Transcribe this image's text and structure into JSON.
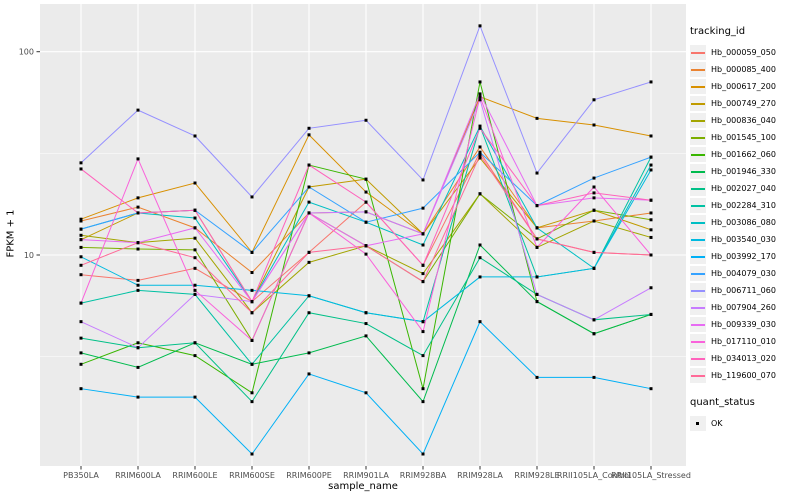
{
  "figure": {
    "background": "#FFFFFF",
    "panel_background": "#EBEBEB",
    "grid_major_color": "#FFFFFF",
    "grid_minor_color": "#FFFFFF",
    "axis_text_color": "#4D4D4D",
    "tick_color": "#333333",
    "point_color": "#000000"
  },
  "chart_data": {
    "type": "line",
    "title": "",
    "xlabel": "sample_name",
    "ylabel": "FPKM + 1",
    "y_scale": "log10",
    "ylim": [
      0.91,
      172
    ],
    "y_ticks": [
      10,
      100
    ],
    "y_minor_ticks": [
      3.162,
      31.62
    ],
    "grid": true,
    "legend_position": "right",
    "point_shape": "filled-black-square",
    "categories": [
      "PB350LA",
      "RRIM600LA",
      "RRIM600LE",
      "RRIM600SE",
      "RRIM600PE",
      "RRIM901LA",
      "RRIM928BA",
      "RRIM928LA",
      "RRIM928LE",
      "RRII105LA_Control",
      "RRII105LA_Stressed"
    ],
    "series": [
      {
        "name": "Hb_000059_050",
        "color": "#F8766D",
        "values": [
          8.0,
          7.5,
          8.6,
          5.9,
          10.3,
          18.2,
          8.9,
          32,
          12.0,
          10.3,
          10.0
        ]
      },
      {
        "name": "Hb_000085_400",
        "color": "#EA8331",
        "values": [
          14.7,
          17.2,
          13.6,
          8.2,
          16.1,
          16.3,
          12.7,
          34,
          13.6,
          14.7,
          16.1
        ]
      },
      {
        "name": "Hb_000617_200",
        "color": "#D89000",
        "values": [
          15.0,
          19.1,
          22.6,
          10.3,
          39,
          20.4,
          12.7,
          60,
          47,
          43.6,
          38.5
        ]
      },
      {
        "name": "Hb_000749_270",
        "color": "#C09B00",
        "values": [
          11.9,
          16.1,
          16.6,
          5.9,
          21.6,
          23.6,
          12.7,
          30,
          13.6,
          16.6,
          13.3
        ]
      },
      {
        "name": "Hb_000836_040",
        "color": "#A3A500",
        "values": [
          12.5,
          11.5,
          12.1,
          5.2,
          9.2,
          11.1,
          8.1,
          20,
          10.9,
          14.7,
          12.2
        ]
      },
      {
        "name": "Hb_001545_100",
        "color": "#7CAE00",
        "values": [
          10.9,
          10.7,
          10.6,
          3.8,
          16.1,
          11.1,
          7.4,
          20,
          12.0,
          16.6,
          14.9
        ]
      },
      {
        "name": "Hb_001662_060",
        "color": "#39B600",
        "values": [
          2.9,
          3.7,
          3.2,
          2.1,
          27.7,
          23.6,
          2.2,
          71,
          5.9,
          4.1,
          5.1
        ]
      },
      {
        "name": "Hb_001946_330",
        "color": "#00BB4E",
        "values": [
          3.3,
          2.8,
          3.7,
          2.9,
          3.3,
          4.0,
          1.9,
          11.2,
          5.9,
          4.1,
          5.1
        ]
      },
      {
        "name": "Hb_002027_040",
        "color": "#00C087",
        "values": [
          3.9,
          3.5,
          3.7,
          1.9,
          5.2,
          4.6,
          3.2,
          9.7,
          6.4,
          4.8,
          5.1
        ]
      },
      {
        "name": "Hb_002284_310",
        "color": "#00C1A3",
        "values": [
          5.8,
          6.7,
          6.4,
          2.9,
          6.3,
          5.2,
          4.7,
          43,
          7.8,
          8.6,
          30.3
        ]
      },
      {
        "name": "Hb_003086_080",
        "color": "#00BFC4",
        "values": [
          13.4,
          16.1,
          15.2,
          5.9,
          18.2,
          14.5,
          11.2,
          43,
          13.6,
          8.6,
          27.7
        ]
      },
      {
        "name": "Hb_003540_030",
        "color": "#00BAE0",
        "values": [
          9.8,
          7.1,
          7.1,
          6.7,
          6.3,
          5.2,
          4.7,
          7.8,
          7.8,
          8.6,
          26.2
        ]
      },
      {
        "name": "Hb_003992_170",
        "color": "#00B0F6",
        "values": [
          2.2,
          2.0,
          2.0,
          1.05,
          2.6,
          2.1,
          1.05,
          4.7,
          2.5,
          2.5,
          2.2
        ]
      },
      {
        "name": "Hb_004079_030",
        "color": "#35A2FF",
        "values": [
          13.4,
          16.1,
          16.6,
          10.3,
          21.6,
          14.5,
          17.0,
          32,
          17.5,
          23.9,
          30.3
        ]
      },
      {
        "name": "Hb_006711_060",
        "color": "#9590FF",
        "values": [
          28.4,
          51.6,
          38.5,
          19.3,
          42,
          46,
          23.4,
          134,
          25.3,
          58,
          71
        ]
      },
      {
        "name": "Hb_007904_260",
        "color": "#C77CFF",
        "values": [
          4.7,
          3.5,
          6.4,
          5.9,
          16.1,
          16.3,
          12.7,
          58,
          6.4,
          4.8,
          6.9
        ]
      },
      {
        "name": "Hb_009339_030",
        "color": "#E76BF3",
        "values": [
          11.9,
          11.5,
          13.6,
          5.9,
          16.1,
          11.1,
          12.7,
          62,
          17.5,
          19.1,
          18.6
        ]
      },
      {
        "name": "Hb_017110_010",
        "color": "#FA62DB",
        "values": [
          5.8,
          29.7,
          6.7,
          3.8,
          16.1,
          10.1,
          4.2,
          60,
          10.9,
          21.6,
          10.0
        ]
      },
      {
        "name": "Hb_034013_020",
        "color": "#FF62BC",
        "values": [
          26.5,
          16.1,
          16.6,
          5.9,
          27.7,
          18.2,
          8.9,
          42,
          17.5,
          20.2,
          18.6
        ]
      },
      {
        "name": "Hb_119600_070",
        "color": "#FF6A98",
        "values": [
          8.9,
          11.5,
          9.7,
          5.2,
          10.3,
          11.1,
          7.4,
          31,
          12.0,
          10.3,
          10.0
        ]
      }
    ]
  },
  "legend": {
    "tracking_title": "tracking_id",
    "quant_title": "quant_status",
    "quant_items": [
      {
        "label": "OK"
      }
    ]
  }
}
